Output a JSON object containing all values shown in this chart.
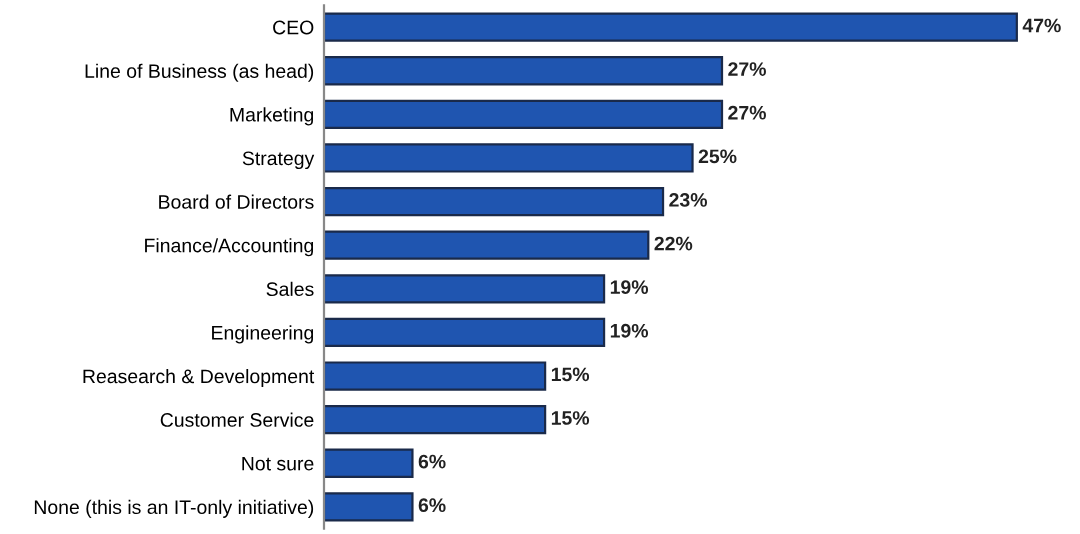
{
  "chart_data": {
    "type": "bar",
    "orientation": "horizontal",
    "categories": [
      "CEO",
      "Line of Business (as head)",
      "Marketing",
      "Strategy",
      "Board of Directors",
      "Finance/Accounting",
      "Sales",
      "Engineering",
      "Reasearch & Development",
      "Customer Service",
      "Not sure",
      "None (this is an IT-only initiative)"
    ],
    "values": [
      47,
      27,
      27,
      25,
      23,
      22,
      19,
      19,
      15,
      15,
      6,
      6
    ],
    "value_labels": [
      "47%",
      "27%",
      "27%",
      "25%",
      "23%",
      "22%",
      "19%",
      "19%",
      "15%",
      "15%",
      "6%",
      "6%"
    ],
    "color": "#1f55b0"
  }
}
